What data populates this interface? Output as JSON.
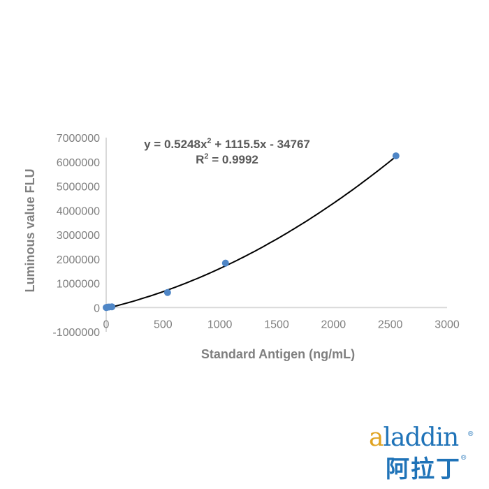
{
  "chart_data": {
    "type": "scatter",
    "xlabel": "Standard Antigen (ng/mL)",
    "ylabel": "Luminous value FLU",
    "xlim": [
      0,
      3000
    ],
    "ylim": [
      -1000000,
      7000000
    ],
    "x_ticks": [
      "0",
      "500",
      "1000",
      "1500",
      "2000",
      "2500",
      "3000"
    ],
    "y_ticks": [
      "7000000",
      "6000000",
      "5000000",
      "4000000",
      "3000000",
      "2000000",
      "1000000",
      "0",
      "-1000000"
    ],
    "x_tick_values": [
      0,
      500,
      1000,
      1500,
      2000,
      2500,
      3000
    ],
    "y_tick_values": [
      7000000,
      6000000,
      5000000,
      4000000,
      3000000,
      2000000,
      1000000,
      0,
      -1000000
    ],
    "points": [
      {
        "x": 0,
        "y": 0
      },
      {
        "x": 10,
        "y": 15000
      },
      {
        "x": 25,
        "y": 20000
      },
      {
        "x": 50,
        "y": 30000
      },
      {
        "x": 540,
        "y": 620000
      },
      {
        "x": 1050,
        "y": 1830000
      },
      {
        "x": 2550,
        "y": 6250000
      }
    ],
    "trendline": {
      "type": "polynomial",
      "a": 0.5248,
      "b": 1115.5,
      "c": -34767,
      "x_range": [
        0,
        2550
      ]
    },
    "equation_parts": {
      "pre": "y = 0.5248x",
      "sup": "2",
      "post": " + 1115.5x - 34767"
    },
    "r2_parts": {
      "pre": "R",
      "sup": "2",
      "post": " = 0.9992"
    },
    "series_color": "#4f86c6",
    "trend_color": "#000000",
    "legend": "none",
    "grid": false
  },
  "logo": {
    "en_first": "a",
    "en_rest": "laddin",
    "cn": "阿拉丁",
    "reg": "®",
    "primary_color": "#1f73b8",
    "accent_color": "#e0a321"
  }
}
